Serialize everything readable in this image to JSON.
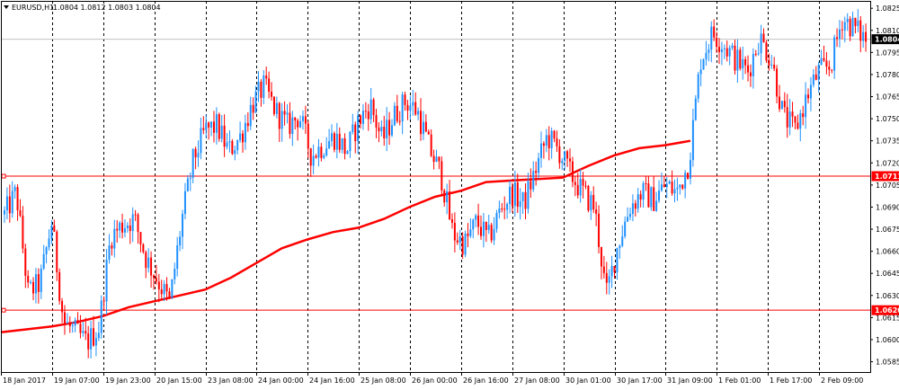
{
  "header": {
    "symbol_label": "EURUSD,H1",
    "ohlc_text": "1.0804 1.0812 1.0803 1.0804",
    "dropdown_icon": "triangle-down-icon"
  },
  "colors": {
    "background": "#ffffff",
    "frame": "#000000",
    "grid": "#000000",
    "bull_candle": "#1e90ff",
    "bear_candle": "#ff0000",
    "moving_average": "#ff0000",
    "hline": "#ff0000",
    "price_marker_bg": "#ffffff",
    "price_marker_text": "#000000",
    "price_line": "#c0c0c0"
  },
  "chart_data": {
    "type": "candlestick",
    "title": "EURUSD,H1",
    "xlabel": "",
    "ylabel": "",
    "ylim": [
      1.0578,
      1.083
    ],
    "y_ticks": [
      "1.0825",
      "1.0810",
      "1.0795",
      "1.0780",
      "1.0765",
      "1.0750",
      "1.0735",
      "1.0720",
      "1.0705",
      "1.0690",
      "1.0675",
      "1.0660",
      "1.0645",
      "1.0630",
      "1.0615",
      "1.0600",
      "1.0585"
    ],
    "x_ticks": [
      "18 Jan 2017",
      "19 Jan 07:00",
      "19 Jan 23:00",
      "20 Jan 15:00",
      "23 Jan 08:00",
      "24 Jan 00:00",
      "24 Jan 16:00",
      "25 Jan 08:00",
      "26 Jan 00:00",
      "26 Jan 16:00",
      "27 Jan 08:00",
      "30 Jan 01:00",
      "30 Jan 17:00",
      "31 Jan 09:00",
      "1 Feb 01:00",
      "1 Feb 17:00",
      "2 Feb 09:00"
    ],
    "current_price": 1.0804,
    "current_price_label": "1.0804",
    "horizontal_lines": [
      {
        "value": 1.0711,
        "label": "1.0711"
      },
      {
        "value": 1.062,
        "label": "1.0620"
      }
    ],
    "candle_anchors": [
      1.0685,
      1.07,
      1.0632,
      1.0638,
      1.068,
      1.0612,
      1.0605,
      1.0598,
      1.0608,
      1.067,
      1.0678,
      1.0682,
      1.0655,
      1.064,
      1.0625,
      1.068,
      1.0722,
      1.0742,
      1.0745,
      1.0728,
      1.0738,
      1.076,
      1.0772,
      1.0755,
      1.0745,
      1.0752,
      1.0725,
      1.0732,
      1.0738,
      1.0728,
      1.0748,
      1.076,
      1.0735,
      1.0752,
      1.0762,
      1.0755,
      1.073,
      1.0712,
      1.0672,
      1.0665,
      1.068,
      1.0668,
      1.0688,
      1.07,
      1.0692,
      1.0715,
      1.0738,
      1.0728,
      1.0712,
      1.07,
      1.069,
      1.063,
      1.0665,
      1.069,
      1.07,
      1.0695,
      1.0705,
      1.07,
      1.072,
      1.079,
      1.0808,
      1.08,
      1.079,
      1.0782,
      1.0805,
      1.079,
      1.0752,
      1.0742,
      1.0765,
      1.0782,
      1.0786,
      1.0818,
      1.0812,
      1.0804
    ],
    "series": [
      {
        "name": "Moving Average",
        "values": [
          1.0605,
          1.0607,
          1.0609,
          1.0612,
          1.0616,
          1.0622,
          1.0626,
          1.063,
          1.0634,
          1.0642,
          1.0652,
          1.0662,
          1.0668,
          1.0673,
          1.0676,
          1.0682,
          1.069,
          1.0697,
          1.0701,
          1.0707,
          1.0708,
          1.0709,
          1.071,
          1.0718,
          1.0725,
          1.073,
          1.0732,
          1.0735
        ]
      }
    ],
    "legend": "none",
    "grid": true
  }
}
